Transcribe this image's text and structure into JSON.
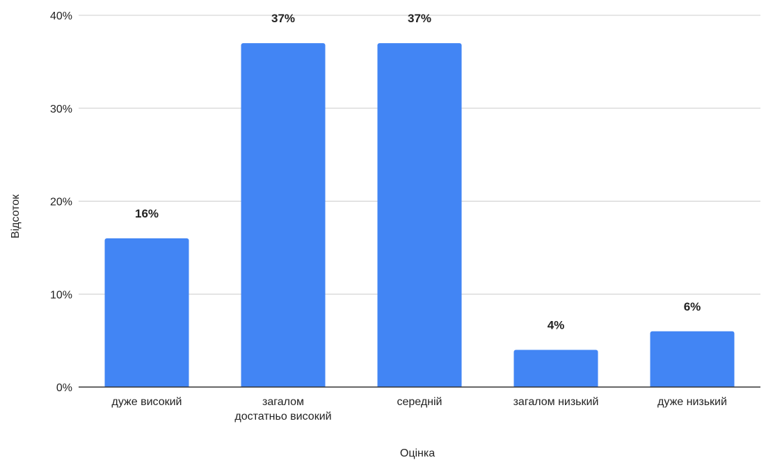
{
  "chart_data": {
    "type": "bar",
    "xlabel": "Оцінка",
    "ylabel": "Відсоток",
    "categories": [
      [
        "дуже високий"
      ],
      [
        "загалом",
        "достатньо високий"
      ],
      [
        "середній"
      ],
      [
        "загалом низький"
      ],
      [
        "дуже низький"
      ]
    ],
    "values": [
      16,
      37,
      37,
      4,
      6
    ],
    "data_labels": [
      "16%",
      "37%",
      "37%",
      "4%",
      "6%"
    ],
    "ylim": [
      0,
      40
    ],
    "yticks": [
      0,
      10,
      20,
      30,
      40
    ],
    "ytick_labels": [
      "0%",
      "10%",
      "20%",
      "30%",
      "40%"
    ],
    "grid": true,
    "legend": "none",
    "bar_color": "#4285f4",
    "grid_color": "#cccccc",
    "axis_color": "#333333"
  }
}
